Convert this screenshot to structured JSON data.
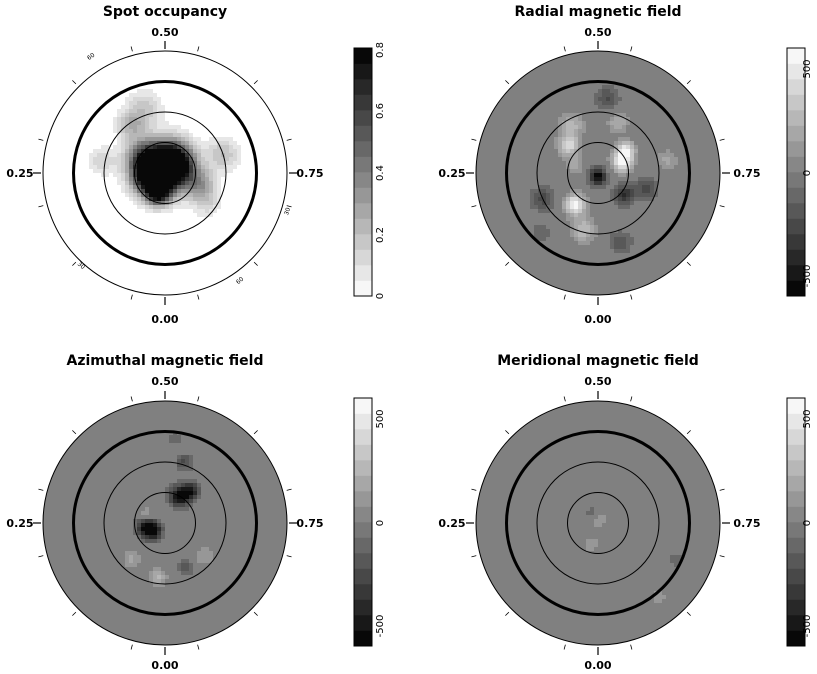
{
  "chart_data": [
    {
      "type": "heatmap",
      "title": "Spot occupancy",
      "projection": "polar",
      "background": "#ffffff",
      "phase_labels": {
        "top": "0.50",
        "left": "0.25",
        "right": "0.75",
        "bottom": "0.00"
      },
      "latitude_labels": [
        "60",
        "30",
        "30",
        "60"
      ],
      "colorbar": {
        "range": [
          0,
          0.8
        ],
        "ticks": [
          "0",
          "0.2",
          "0.4",
          "0.6",
          "0.8"
        ],
        "levels": 16
      },
      "features": [
        {
          "phase": 0.5,
          "r": 0.05,
          "value": 0.78,
          "size": 0.14
        },
        {
          "phase": 0.62,
          "r": 0.1,
          "value": 0.72,
          "size": 0.11
        },
        {
          "phase": 0.2,
          "r": 0.14,
          "value": 0.62,
          "size": 0.1
        },
        {
          "phase": 0.05,
          "r": 0.17,
          "value": 0.7,
          "size": 0.07
        },
        {
          "phase": 0.35,
          "r": 0.22,
          "value": 0.45,
          "size": 0.1
        },
        {
          "phase": 0.8,
          "r": 0.3,
          "value": 0.3,
          "size": 0.09
        },
        {
          "phase": 0.45,
          "r": 0.55,
          "value": 0.18,
          "size": 0.1
        },
        {
          "phase": 0.4,
          "r": 0.48,
          "value": 0.22,
          "size": 0.08
        },
        {
          "phase": 0.7,
          "r": 0.5,
          "value": 0.2,
          "size": 0.09
        },
        {
          "phase": 0.28,
          "r": 0.52,
          "value": 0.14,
          "size": 0.08
        },
        {
          "phase": 0.85,
          "r": 0.42,
          "value": 0.12,
          "size": 0.08
        }
      ]
    },
    {
      "type": "heatmap",
      "title": "Radial magnetic field",
      "projection": "polar",
      "background": "#808080",
      "phase_labels": {
        "top": "0.50",
        "left": "0.25",
        "right": "0.75",
        "bottom": "0.00"
      },
      "colorbar": {
        "range": [
          -600,
          600
        ],
        "ticks": [
          "-500",
          "0",
          "500"
        ],
        "levels": 16
      },
      "features": [
        {
          "phase": 0.0,
          "r": 0.03,
          "value": -580,
          "size": 0.05
        },
        {
          "phase": 0.86,
          "r": 0.28,
          "value": -380,
          "size": 0.06
        },
        {
          "phase": 0.8,
          "r": 0.42,
          "value": -300,
          "size": 0.06
        },
        {
          "phase": 0.68,
          "r": 0.22,
          "value": 560,
          "size": 0.06
        },
        {
          "phase": 0.64,
          "r": 0.3,
          "value": 450,
          "size": 0.05
        },
        {
          "phase": 0.1,
          "r": 0.32,
          "value": 560,
          "size": 0.06
        },
        {
          "phase": 0.04,
          "r": 0.48,
          "value": 300,
          "size": 0.07
        },
        {
          "phase": 0.18,
          "r": 0.5,
          "value": -260,
          "size": 0.07
        },
        {
          "phase": 0.52,
          "r": 0.62,
          "value": -230,
          "size": 0.07
        },
        {
          "phase": 0.56,
          "r": 0.45,
          "value": 230,
          "size": 0.06
        },
        {
          "phase": 0.42,
          "r": 0.45,
          "value": 260,
          "size": 0.07
        },
        {
          "phase": 0.37,
          "r": 0.33,
          "value": 420,
          "size": 0.06
        },
        {
          "phase": 0.3,
          "r": 0.2,
          "value": 200,
          "size": 0.05
        },
        {
          "phase": 0.72,
          "r": 0.58,
          "value": 170,
          "size": 0.06
        },
        {
          "phase": 0.95,
          "r": 0.6,
          "value": -200,
          "size": 0.07
        },
        {
          "phase": 0.12,
          "r": 0.68,
          "value": -150,
          "size": 0.06
        }
      ]
    },
    {
      "type": "heatmap",
      "title": "Azimuthal magnetic field",
      "projection": "polar",
      "background": "#808080",
      "phase_labels": {
        "top": "0.50",
        "left": "0.25",
        "right": "0.75",
        "bottom": "0.00"
      },
      "colorbar": {
        "range": [
          -600,
          600
        ],
        "ticks": [
          "-500",
          "0",
          "500"
        ],
        "levels": 16
      },
      "features": [
        {
          "phase": 0.58,
          "r": 0.25,
          "value": -580,
          "size": 0.06
        },
        {
          "phase": 0.61,
          "r": 0.34,
          "value": -420,
          "size": 0.05
        },
        {
          "phase": 0.22,
          "r": 0.15,
          "value": -560,
          "size": 0.06
        },
        {
          "phase": 0.15,
          "r": 0.12,
          "value": -420,
          "size": 0.05
        },
        {
          "phase": 0.31,
          "r": 0.16,
          "value": 230,
          "size": 0.05
        },
        {
          "phase": 0.55,
          "r": 0.52,
          "value": -250,
          "size": 0.05
        },
        {
          "phase": 0.52,
          "r": 0.7,
          "value": -120,
          "size": 0.05
        },
        {
          "phase": 0.02,
          "r": 0.45,
          "value": 240,
          "size": 0.05
        },
        {
          "phase": 0.12,
          "r": 0.4,
          "value": 180,
          "size": 0.05
        },
        {
          "phase": 0.86,
          "r": 0.42,
          "value": 150,
          "size": 0.06
        },
        {
          "phase": 0.93,
          "r": 0.4,
          "value": -180,
          "size": 0.05
        }
      ]
    },
    {
      "type": "heatmap",
      "title": "Meridional magnetic field",
      "projection": "polar",
      "background": "#808080",
      "phase_labels": {
        "top": "0.50",
        "left": "0.25",
        "right": "0.75",
        "bottom": "0.00"
      },
      "colorbar": {
        "range": [
          -600,
          600
        ],
        "ticks": [
          "-500",
          "0",
          "500"
        ],
        "levels": 16
      },
      "features": [
        {
          "phase": 0.5,
          "r": 0.03,
          "value": 200,
          "size": 0.05
        },
        {
          "phase": 0.42,
          "r": 0.08,
          "value": -160,
          "size": 0.05
        },
        {
          "phase": 0.05,
          "r": 0.18,
          "value": 130,
          "size": 0.05
        },
        {
          "phase": 0.82,
          "r": 0.7,
          "value": -150,
          "size": 0.04
        },
        {
          "phase": 0.89,
          "r": 0.78,
          "value": 140,
          "size": 0.04
        }
      ]
    }
  ]
}
